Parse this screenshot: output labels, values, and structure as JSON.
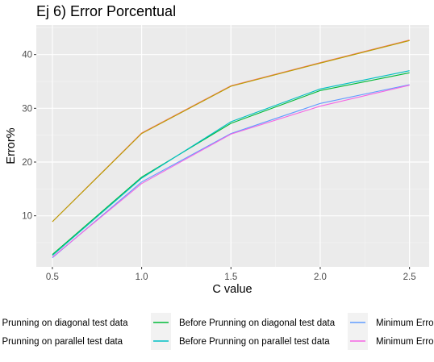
{
  "chart_data": {
    "type": "line",
    "title": "Ej 6) Error Porcentual",
    "xlabel": "C value",
    "ylabel": "Error%",
    "x": [
      0.5,
      1.0,
      1.5,
      2.0,
      2.5
    ],
    "xticks": [
      "0.5",
      "1.0",
      "1.5",
      "2.0",
      "2.5"
    ],
    "yticks": [
      "10",
      "20",
      "30",
      "40"
    ],
    "xlim": [
      0.41,
      2.61
    ],
    "ylim": [
      0.5,
      45.5
    ],
    "grid": true,
    "legend_position": "bottom",
    "series": [
      {
        "name": "After Prunning on diagonal test data",
        "color": "#F8766D",
        "values": [
          8.9,
          25.4,
          34.2,
          38.5,
          42.7
        ]
      },
      {
        "name": "After Prunning on parallel test data",
        "color": "#B79F00",
        "values": [
          8.9,
          25.3,
          34.1,
          38.4,
          42.6
        ]
      },
      {
        "name": "Before Prunning on diagonal test data",
        "color": "#00BA38",
        "values": [
          2.8,
          17.2,
          27.2,
          33.3,
          36.6
        ]
      },
      {
        "name": "Before Prunning on parallel test data",
        "color": "#00BFC4",
        "values": [
          2.6,
          17.0,
          27.5,
          33.6,
          37.0
        ]
      },
      {
        "name": "Minimum Error on diagonal test data",
        "color": "#619CFF",
        "values": [
          2.2,
          16.3,
          25.3,
          30.9,
          34.4
        ]
      },
      {
        "name": "Minimum Error on parallel test data",
        "color": "#F564E3",
        "values": [
          2.3,
          16.0,
          25.2,
          30.4,
          34.3
        ]
      }
    ]
  }
}
